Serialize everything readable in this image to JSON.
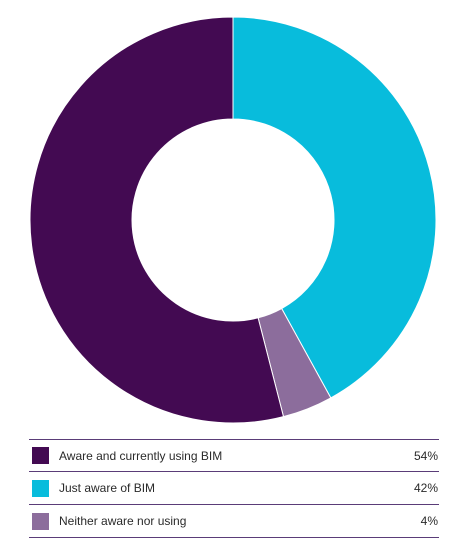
{
  "chart_data": {
    "type": "pie",
    "donut": true,
    "title": "",
    "unit": "%",
    "legend_position": "bottom",
    "slices": [
      {
        "label": "Just aware of BIM",
        "value": 42,
        "display": "42%",
        "color": "#08bcdc"
      },
      {
        "label": "Neither aware nor using",
        "value": 4,
        "display": "4%",
        "color": "#8c6d9c"
      },
      {
        "label": "Aware and currently using BIM",
        "value": 54,
        "display": "54%",
        "color": "#430a52"
      }
    ]
  },
  "legend": [
    {
      "label": "Aware and currently using BIM",
      "value": "54%",
      "color": "#430a52"
    },
    {
      "label": "Just aware of BIM",
      "value": "42%",
      "color": "#08bcdc"
    },
    {
      "label": "Neither aware nor using",
      "value": "4%",
      "color": "#8c6d9c"
    }
  ]
}
